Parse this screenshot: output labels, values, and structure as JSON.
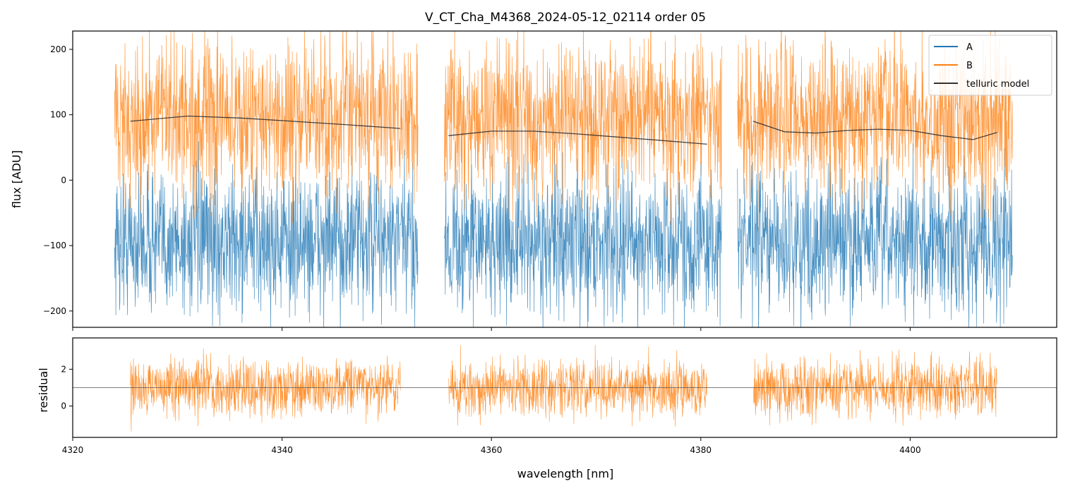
{
  "chart_data": [
    {
      "type": "line",
      "panel": "top",
      "title": "V_CT_Cha_M4368_2024-05-12_02114  order 05",
      "xlabel": "",
      "ylabel": "flux [ADU]",
      "xlim": [
        4320,
        4414
      ],
      "ylim": [
        -225,
        228
      ],
      "xticks": [
        4320,
        4340,
        4360,
        4380,
        4400
      ],
      "xtick_labels": [],
      "yticks": [
        -200,
        -100,
        0,
        100,
        200
      ],
      "ytick_labels": [
        "−200",
        "−100",
        "0",
        "100",
        "200"
      ],
      "legend_position": "top-right",
      "segments": [
        [
          4324.0,
          4353.0
        ],
        [
          4355.5,
          4382.0
        ],
        [
          4383.5,
          4409.8
        ]
      ],
      "model_segments": [
        [
          4325.5,
          4351.3
        ],
        [
          4355.9,
          4380.6
        ],
        [
          4385.0,
          4408.3
        ]
      ],
      "series": [
        {
          "name": "A",
          "color": "#1f77b4",
          "mean": -95,
          "spread": 55,
          "x": [],
          "values": []
        },
        {
          "name": "B",
          "color": "#ff7f0e",
          "mean": 95,
          "spread": 60,
          "x": [],
          "values": []
        },
        {
          "name": "telluric model",
          "color": "#333333",
          "x": [
            4325.5,
            4331.0,
            4336.0,
            4341.0,
            4346.0,
            4351.3,
            4355.9,
            4360.0,
            4364.0,
            4368.0,
            4372.0,
            4376.0,
            4380.6,
            4385.0,
            4388.0,
            4391.0,
            4394.0,
            4397.0,
            4400.0,
            4403.0,
            4406.0,
            4408.3
          ],
          "values": [
            90,
            98,
            95,
            90,
            85,
            79,
            68,
            75,
            75,
            71,
            66,
            61,
            55,
            90,
            74,
            72,
            76,
            78,
            76,
            68,
            62,
            73
          ]
        }
      ]
    },
    {
      "type": "line",
      "panel": "bottom",
      "title": "",
      "xlabel": "wavelength [nm]",
      "ylabel": "residual",
      "xlim": [
        4320,
        4414
      ],
      "ylim": [
        -1.7,
        3.7
      ],
      "xticks": [
        4320,
        4340,
        4360,
        4380,
        4400
      ],
      "xtick_labels": [
        "4320",
        "4340",
        "4360",
        "4380",
        "4400"
      ],
      "yticks": [
        0,
        2
      ],
      "ytick_labels": [
        "0",
        "2"
      ],
      "reference_line": 1,
      "segments": [
        [
          4325.5,
          4351.3
        ],
        [
          4355.9,
          4380.6
        ],
        [
          4385.0,
          4408.3
        ]
      ],
      "series": [
        {
          "name": "B residual",
          "color": "#ff7f0e",
          "mean": 1.0,
          "spread": 0.8,
          "x": [],
          "values": []
        }
      ]
    }
  ],
  "legend": {
    "items": [
      {
        "label": "A",
        "color": "#1f77b4"
      },
      {
        "label": "B",
        "color": "#ff7f0e"
      },
      {
        "label": "telluric model",
        "color": "#333333"
      }
    ]
  }
}
